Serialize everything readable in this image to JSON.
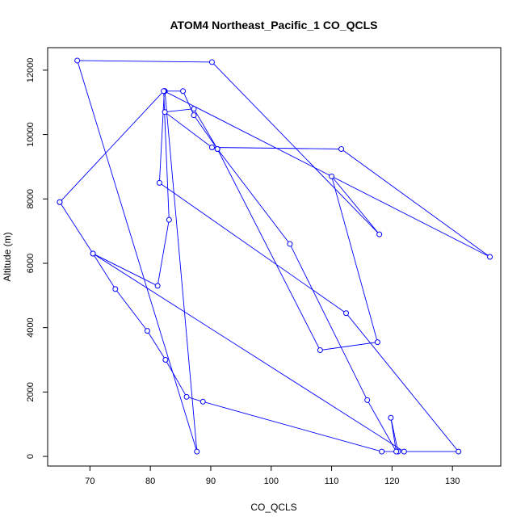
{
  "chart_data": {
    "type": "line",
    "title": "ATOM4 Northeast_Pacific_1 CO_QCLS",
    "xlabel": "CO_QCLS",
    "ylabel": "Altitude (m)",
    "xlim": [
      63,
      138
    ],
    "ylim": [
      -300,
      12700
    ],
    "xticks": [
      70,
      80,
      90,
      100,
      110,
      120,
      130
    ],
    "yticks": [
      0,
      2000,
      4000,
      6000,
      8000,
      10000,
      12000
    ],
    "grid": false,
    "color": "#0000ff",
    "marker": "open-circle",
    "series": [
      {
        "x": [
          65.0,
          70.5,
          74.2,
          79.5,
          82.5,
          86.0,
          88.7,
          118.3,
          121.0,
          119.8,
          120.7,
          115.9,
          103.1,
          91.1,
          87.2,
          82.4,
          90.2,
          111.6,
          136.2,
          82.3,
          85.4,
          87.2,
          91.1,
          108.1,
          117.6,
          110.0,
          117.9,
          90.2,
          67.9,
          87.7,
          82.4,
          82.3,
          81.5,
          112.4,
          131.0,
          122.0,
          70.5,
          81.2,
          83.1,
          82.2,
          65.0
        ],
        "y": [
          7900,
          6300,
          5200,
          3900,
          3000,
          1850,
          1700,
          150,
          150,
          1200,
          150,
          1750,
          6600,
          9550,
          10800,
          10700,
          9600,
          9550,
          6200,
          11350,
          11350,
          10600,
          9550,
          3300,
          3550,
          8700,
          6900,
          12250,
          12300,
          150,
          11350,
          11350,
          8500,
          4450,
          150,
          150,
          6300,
          5300,
          7350,
          11350,
          7900
        ]
      }
    ]
  }
}
